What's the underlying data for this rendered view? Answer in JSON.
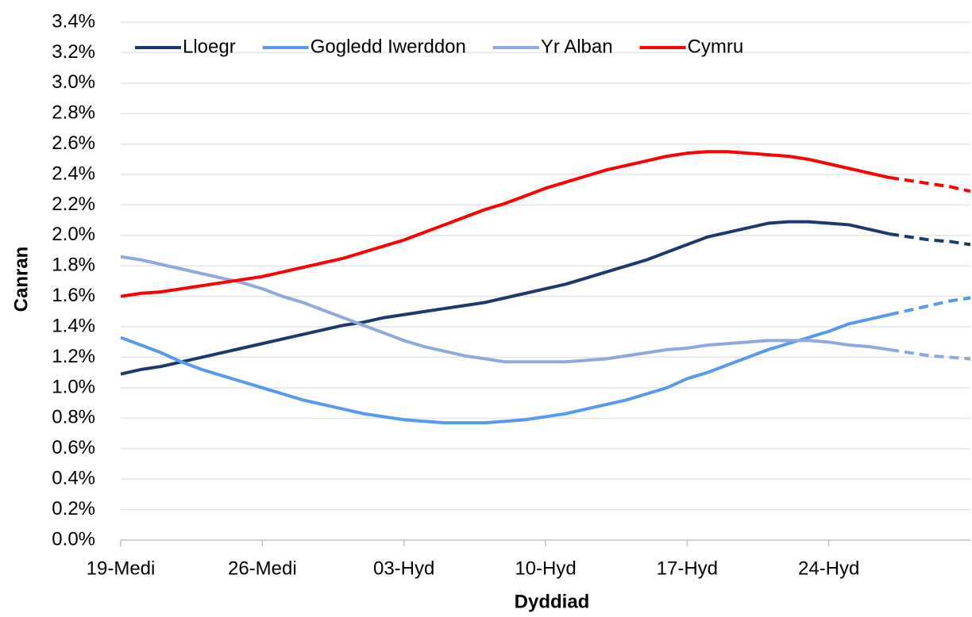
{
  "chart_data": {
    "type": "line",
    "x_title": "Dyddiad",
    "y_title": "Canran",
    "categories": [
      "19-Medi",
      null,
      null,
      null,
      null,
      null,
      null,
      "26-Medi",
      null,
      null,
      null,
      null,
      null,
      null,
      "03-Hyd",
      null,
      null,
      null,
      null,
      null,
      null,
      "10-Hyd",
      null,
      null,
      null,
      null,
      null,
      null,
      "17-Hyd",
      null,
      null,
      null,
      null,
      null,
      null,
      "24-Hyd",
      null,
      null,
      null,
      null,
      null,
      null,
      null
    ],
    "dashed_from_index": 38,
    "series": [
      {
        "name": "Lloegr",
        "color": "#1a3a6b",
        "values": [
          1.09,
          1.12,
          1.14,
          1.17,
          1.2,
          1.23,
          1.26,
          1.29,
          1.32,
          1.35,
          1.38,
          1.41,
          1.43,
          1.46,
          1.48,
          1.5,
          1.52,
          1.54,
          1.56,
          1.59,
          1.62,
          1.65,
          1.68,
          1.72,
          1.76,
          1.8,
          1.84,
          1.89,
          1.94,
          1.99,
          2.02,
          2.05,
          2.08,
          2.09,
          2.09,
          2.08,
          2.07,
          2.04,
          2.01,
          1.99,
          1.97,
          1.96,
          1.94
        ]
      },
      {
        "name": "Gogledd Iwerddon",
        "color": "#559af0",
        "values": [
          1.33,
          1.28,
          1.23,
          1.17,
          1.12,
          1.08,
          1.04,
          1.0,
          0.96,
          0.92,
          0.89,
          0.86,
          0.83,
          0.81,
          0.79,
          0.78,
          0.77,
          0.77,
          0.77,
          0.78,
          0.79,
          0.81,
          0.83,
          0.86,
          0.89,
          0.92,
          0.96,
          1.0,
          1.06,
          1.1,
          1.15,
          1.2,
          1.25,
          1.29,
          1.33,
          1.37,
          1.42,
          1.45,
          1.48,
          1.51,
          1.54,
          1.57,
          1.59
        ]
      },
      {
        "name": "Yr Alban",
        "color": "#8eaadc",
        "values": [
          1.86,
          1.84,
          1.81,
          1.78,
          1.75,
          1.72,
          1.69,
          1.65,
          1.6,
          1.56,
          1.51,
          1.46,
          1.41,
          1.36,
          1.31,
          1.27,
          1.24,
          1.21,
          1.19,
          1.17,
          1.17,
          1.17,
          1.17,
          1.18,
          1.19,
          1.21,
          1.23,
          1.25,
          1.26,
          1.28,
          1.29,
          1.3,
          1.31,
          1.31,
          1.31,
          1.3,
          1.28,
          1.27,
          1.25,
          1.23,
          1.21,
          1.2,
          1.19
        ]
      },
      {
        "name": "Cymru",
        "color": "#ff0000",
        "values": [
          1.6,
          1.62,
          1.63,
          1.65,
          1.67,
          1.69,
          1.71,
          1.73,
          1.76,
          1.79,
          1.82,
          1.85,
          1.89,
          1.93,
          1.97,
          2.02,
          2.07,
          2.12,
          2.17,
          2.21,
          2.26,
          2.31,
          2.35,
          2.39,
          2.43,
          2.46,
          2.49,
          2.52,
          2.54,
          2.55,
          2.55,
          2.54,
          2.53,
          2.52,
          2.5,
          2.47,
          2.44,
          2.41,
          2.38,
          2.36,
          2.34,
          2.32,
          2.29
        ]
      }
    ],
    "ylim": [
      0,
      3.4
    ],
    "yticks": [
      {
        "value": 0,
        "label": "0.0%"
      },
      {
        "value": 0.2,
        "label": "0.2%"
      },
      {
        "value": 0.4,
        "label": "0.4%"
      },
      {
        "value": 0.6,
        "label": "0.6%"
      },
      {
        "value": 0.8,
        "label": "0.8%"
      },
      {
        "value": 1.0,
        "label": "1.0%"
      },
      {
        "value": 1.2,
        "label": "1.2%"
      },
      {
        "value": 1.4,
        "label": "1.4%"
      },
      {
        "value": 1.6,
        "label": "1.6%"
      },
      {
        "value": 1.8,
        "label": "1.8%"
      },
      {
        "value": 2.0,
        "label": "2.0%"
      },
      {
        "value": 2.2,
        "label": "2.2%"
      },
      {
        "value": 2.4,
        "label": "2.4%"
      },
      {
        "value": 2.6,
        "label": "2.6%"
      },
      {
        "value": 2.8,
        "label": "2.8%"
      },
      {
        "value": 3.0,
        "label": "3.0%"
      },
      {
        "value": 3.2,
        "label": "3.2%"
      },
      {
        "value": 3.4,
        "label": "3.4%"
      }
    ],
    "grid": true,
    "legend": "top"
  }
}
